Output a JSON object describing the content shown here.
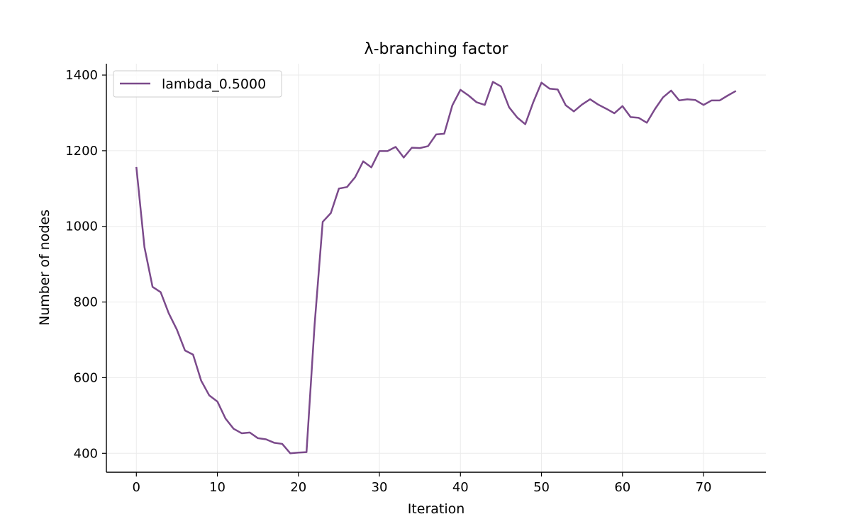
{
  "chart_data": {
    "type": "line",
    "title": "λ-branching factor",
    "xlabel": "Iteration",
    "ylabel": "Number of nodes",
    "xlim": [
      -3.7,
      77.7
    ],
    "ylim": [
      350,
      1430
    ],
    "xticks": [
      0,
      10,
      20,
      30,
      40,
      50,
      60,
      70
    ],
    "yticks": [
      400,
      600,
      800,
      1000,
      1200,
      1400
    ],
    "grid": true,
    "legend_position": "top-left",
    "series": [
      {
        "name": "lambda_0.5000",
        "color": "#7b4a8b",
        "x": [
          0,
          1,
          2,
          3,
          4,
          5,
          6,
          7,
          8,
          9,
          10,
          11,
          12,
          13,
          14,
          15,
          16,
          17,
          18,
          19,
          20,
          21,
          22,
          23,
          24,
          25,
          26,
          27,
          28,
          29,
          30,
          31,
          32,
          33,
          34,
          35,
          36,
          37,
          38,
          39,
          40,
          41,
          42,
          43,
          44,
          45,
          46,
          47,
          48,
          49,
          50,
          51,
          52,
          53,
          54,
          55,
          56,
          57,
          58,
          59,
          60,
          61,
          62,
          63,
          64,
          65,
          66,
          67,
          68,
          69,
          70,
          71,
          72,
          73,
          74
        ],
        "values": [
          1157,
          945,
          840,
          826,
          770,
          727,
          672,
          661,
          592,
          553,
          537,
          492,
          465,
          453,
          455,
          440,
          437,
          428,
          425,
          400,
          402,
          403,
          740,
          1012,
          1035,
          1100,
          1104,
          1130,
          1172,
          1156,
          1199,
          1199,
          1210,
          1182,
          1208,
          1207,
          1212,
          1243,
          1245,
          1320,
          1361,
          1346,
          1328,
          1321,
          1382,
          1370,
          1315,
          1288,
          1270,
          1329,
          1380,
          1364,
          1362,
          1320,
          1304,
          1322,
          1336,
          1322,
          1311,
          1299,
          1318,
          1289,
          1287,
          1274,
          1310,
          1341,
          1359,
          1333,
          1336,
          1334,
          1321,
          1333,
          1333,
          1346,
          1358
        ]
      }
    ]
  }
}
